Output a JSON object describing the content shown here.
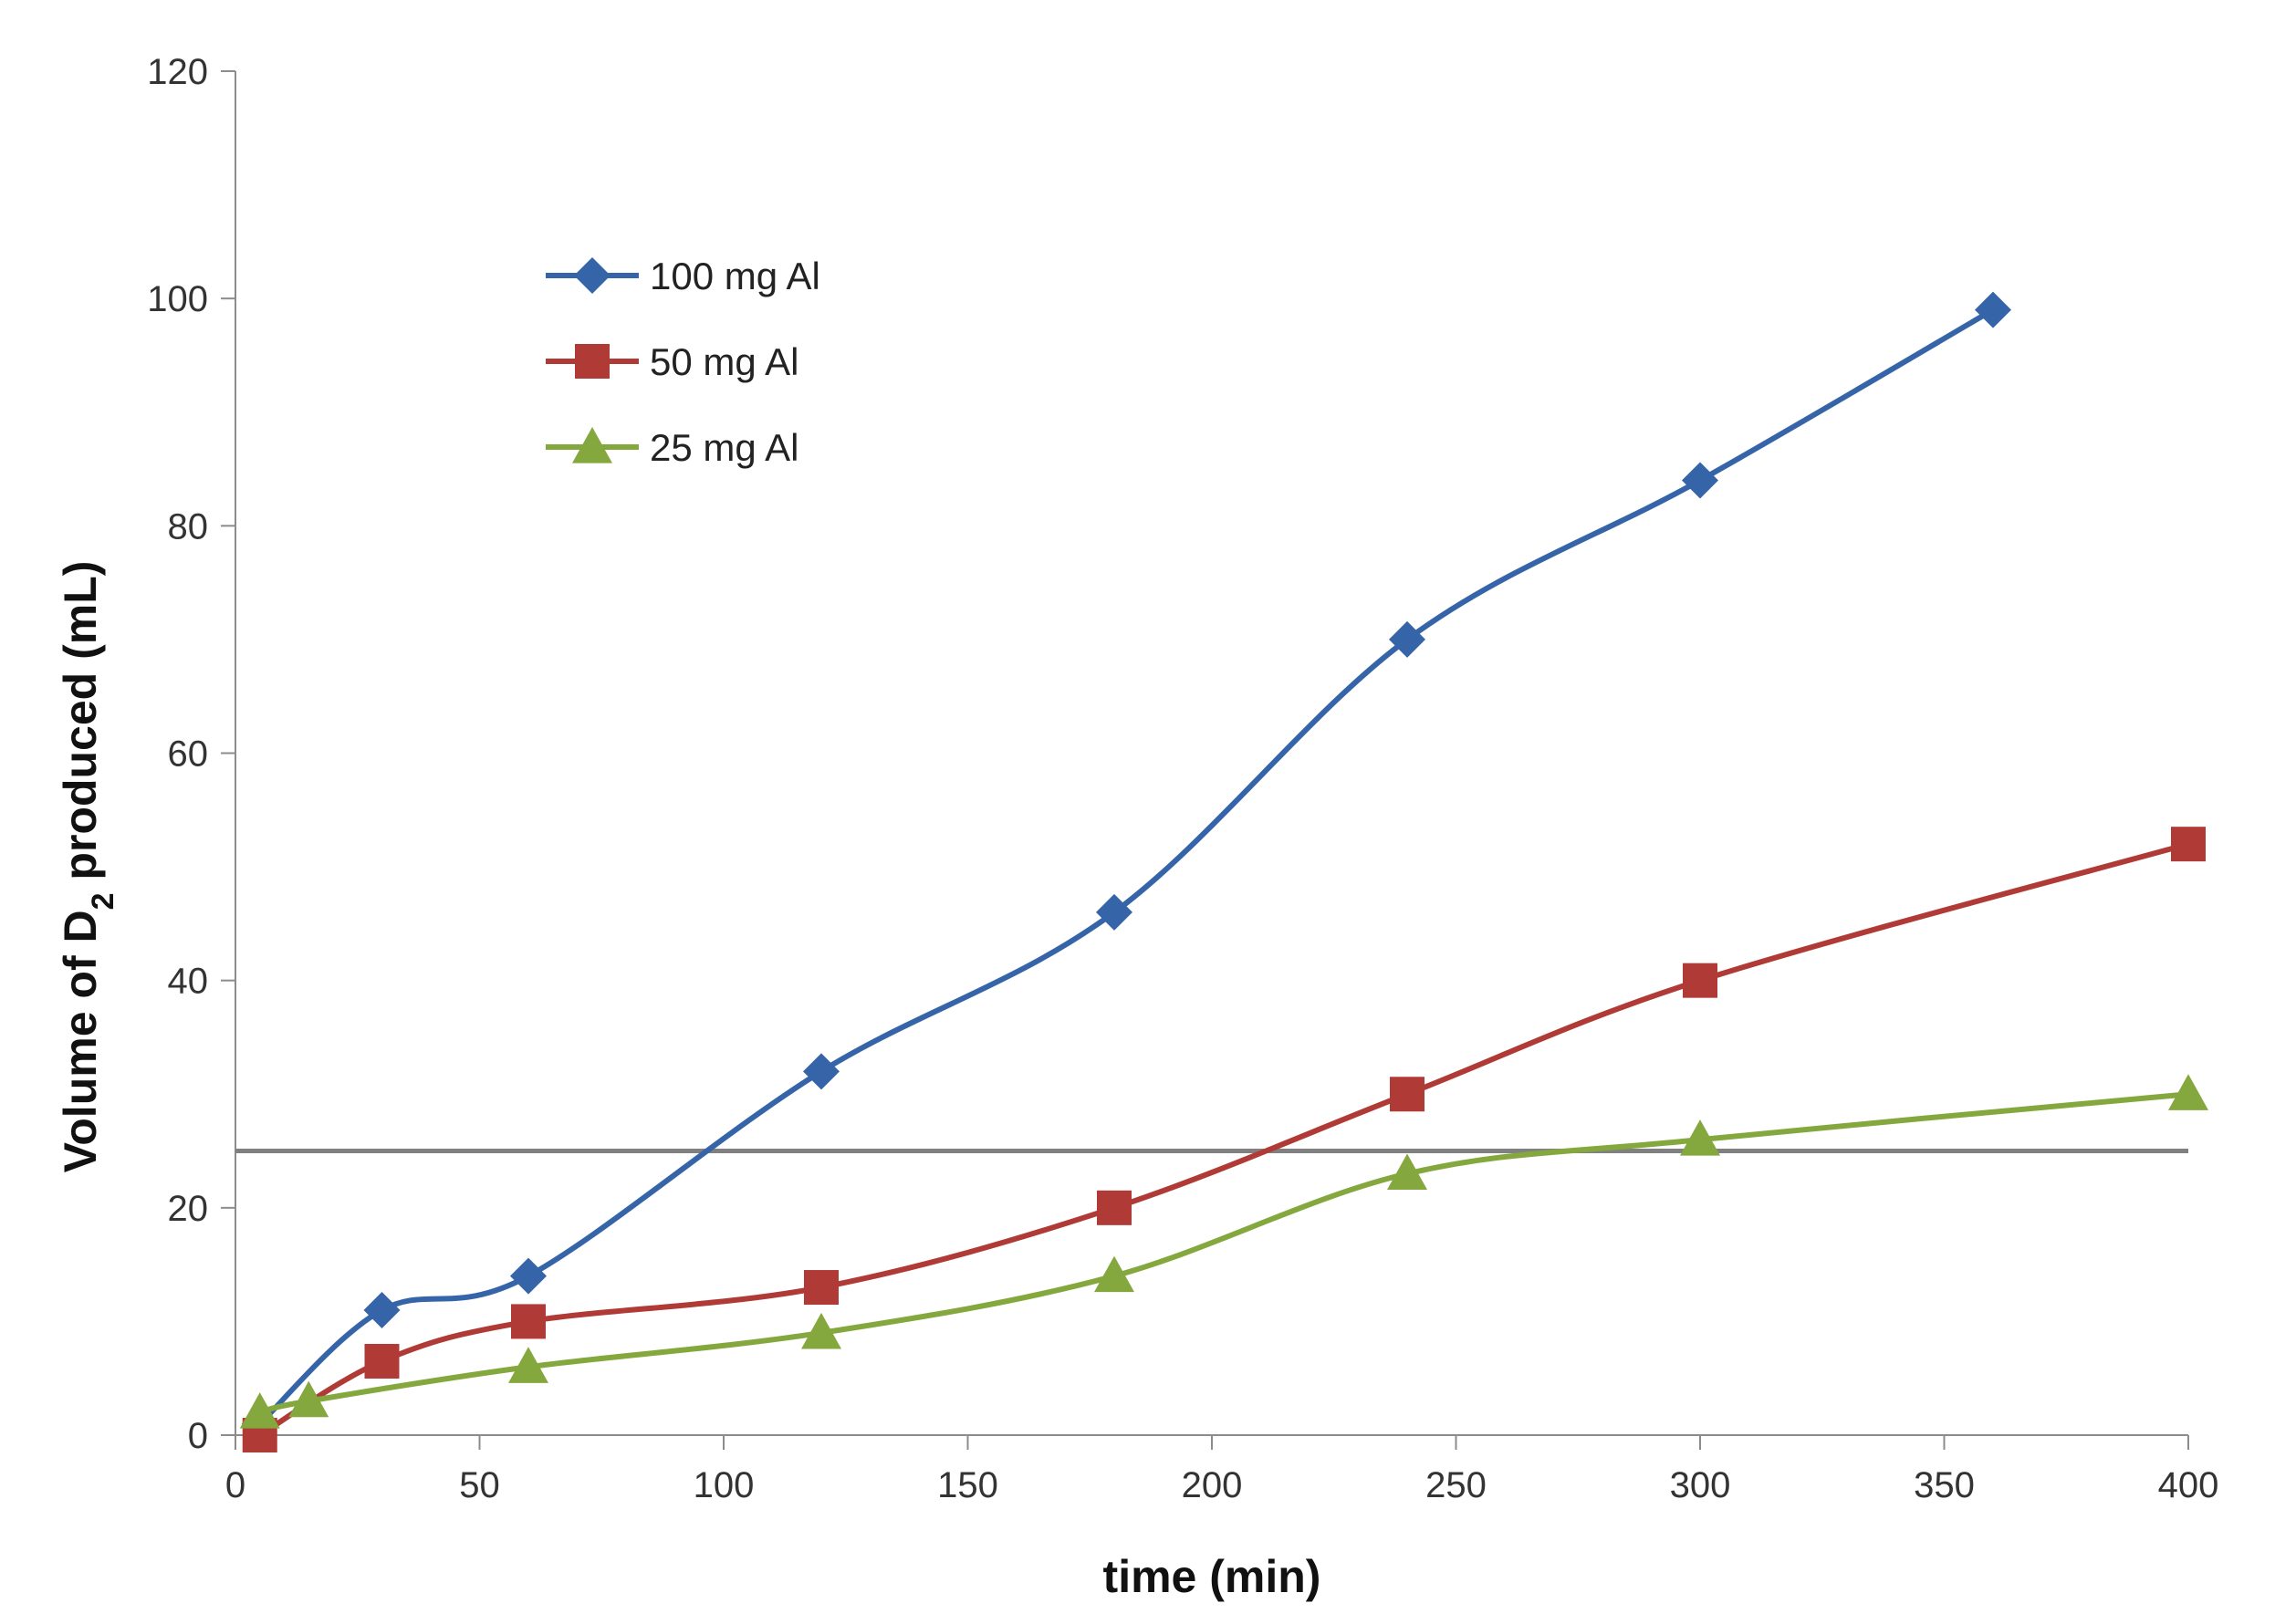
{
  "chart_data": {
    "type": "line",
    "title": "",
    "xlabel": "time (min)",
    "ylabel": {
      "prefix": "Volume of D",
      "subscript": "2",
      "suffix": " produced (mL)"
    },
    "xlim": [
      0,
      400
    ],
    "ylim": [
      0,
      120
    ],
    "xticks": [
      "0",
      "50",
      "100",
      "150",
      "200",
      "250",
      "300",
      "350",
      "400"
    ],
    "yticks": [
      "0",
      "20",
      "40",
      "60",
      "80",
      "100",
      "120"
    ],
    "grid": false,
    "legend_position": "upper-left",
    "reference_line": {
      "y": 25,
      "color": "#808080"
    },
    "series": [
      {
        "name": "100 mg Al",
        "color": "#3565A8",
        "marker": "diamond",
        "x": [
          5,
          30,
          60,
          120,
          180,
          240,
          300,
          360
        ],
        "y": [
          1,
          11,
          14,
          32,
          46,
          70,
          84,
          99
        ]
      },
      {
        "name": "50 mg Al",
        "color": "#B03A36",
        "marker": "square",
        "x": [
          5,
          30,
          60,
          120,
          180,
          240,
          300,
          400
        ],
        "y": [
          0,
          6.5,
          10,
          13,
          20,
          30,
          40,
          52
        ]
      },
      {
        "name": "25 mg Al",
        "color": "#84A83E",
        "marker": "triangle",
        "x": [
          5,
          15,
          60,
          120,
          180,
          240,
          300,
          400
        ],
        "y": [
          2,
          3,
          6,
          9,
          14,
          23,
          26,
          30
        ]
      }
    ]
  }
}
